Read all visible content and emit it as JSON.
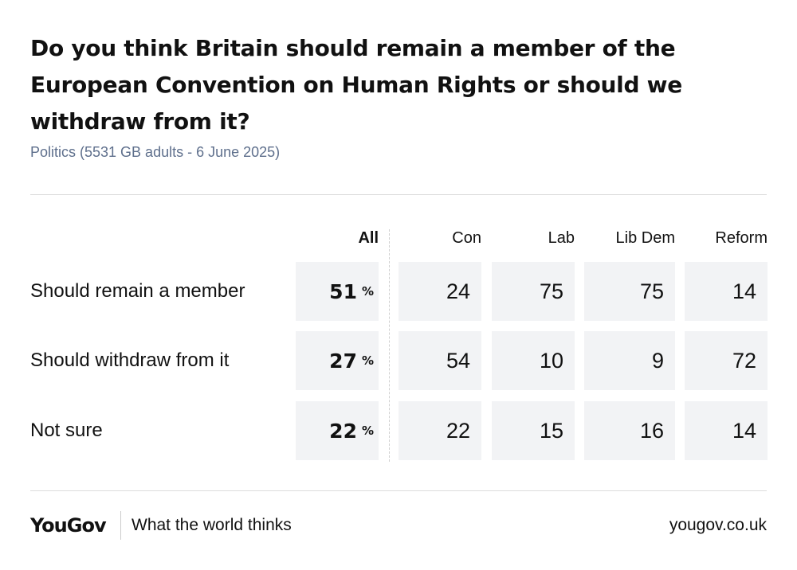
{
  "header": {
    "title": "Do you think Britain should remain a member of the European Convention on Human Rights or should we withdraw from it?",
    "subtitle": "Politics (5531 GB adults - 6 June 2025)"
  },
  "chart_data": {
    "type": "table",
    "columns": [
      "All",
      "Con",
      "Lab",
      "Lib Dem",
      "Reform"
    ],
    "rows": [
      {
        "label": "Should remain a member",
        "values": [
          51,
          24,
          75,
          75,
          14
        ]
      },
      {
        "label": "Should withdraw from it",
        "values": [
          27,
          54,
          10,
          9,
          72
        ]
      },
      {
        "label": "Not sure",
        "values": [
          22,
          22,
          15,
          16,
          14
        ]
      }
    ],
    "unit_symbol": "%"
  },
  "footer": {
    "logo": "YouGov",
    "tagline": "What the world thinks",
    "site": "yougov.co.uk"
  }
}
